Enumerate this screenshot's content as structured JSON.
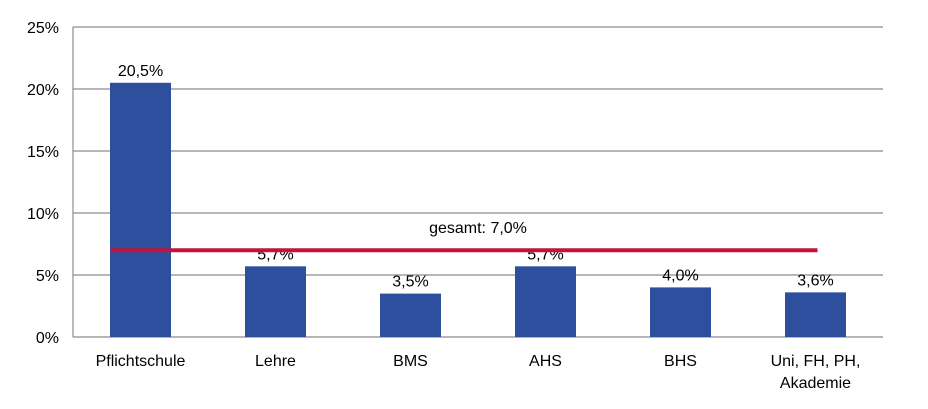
{
  "chart_data": {
    "type": "bar",
    "title": "",
    "xlabel": "",
    "ylabel": "",
    "categories": [
      [
        "Pflichtschule"
      ],
      [
        "Lehre"
      ],
      [
        "BMS"
      ],
      [
        "AHS"
      ],
      [
        "BHS"
      ],
      [
        "Uni, FH, PH,",
        "Akademie"
      ]
    ],
    "values": [
      20.5,
      5.7,
      3.5,
      5.7,
      4.0,
      3.6
    ],
    "data_labels": [
      "20,5%",
      "5,7%",
      "3,5%",
      "5,7%",
      "4,0%",
      "3,6%"
    ],
    "ylim": [
      0,
      25
    ],
    "y_ticks": [
      0,
      5,
      10,
      15,
      20,
      25
    ],
    "y_tick_labels": [
      "0%",
      "5%",
      "10%",
      "15%",
      "20%",
      "25%"
    ],
    "grid": true,
    "legend": "none",
    "reference_line": {
      "value": 7.0,
      "label": "gesamt: 7,0%",
      "color": "#c0143c"
    },
    "bar_color": "#2e4e9e",
    "grid_color": "#8c8c8c"
  }
}
